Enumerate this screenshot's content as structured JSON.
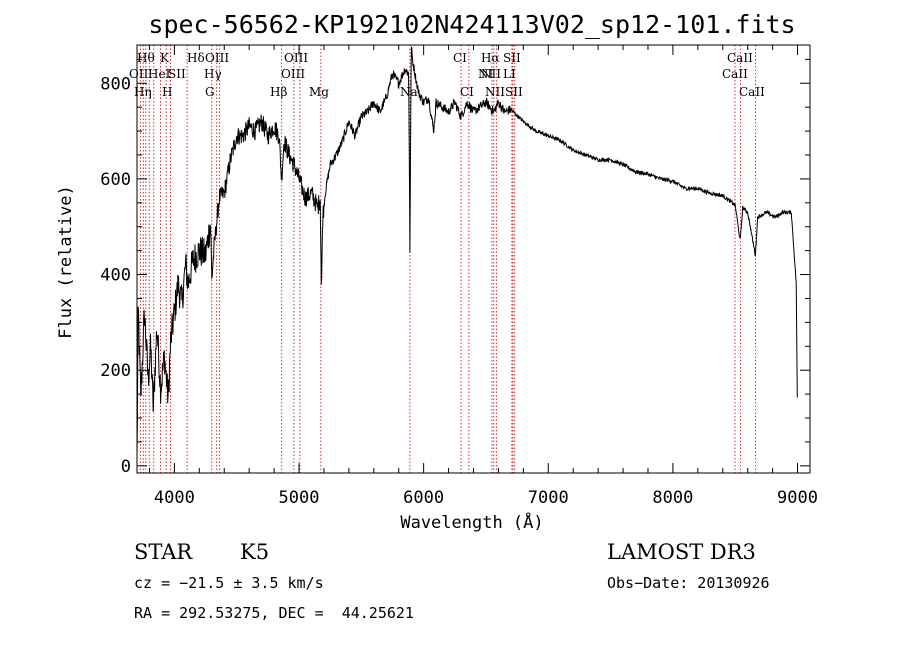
{
  "chart_data": {
    "type": "line",
    "title": "spec-56562-KP192102N424113V02_sp12-101.fits",
    "xlabel": "Wavelength (Å)",
    "ylabel": "Flux (relative)",
    "xlim": [
      3700,
      9100
    ],
    "ylim": [
      -15,
      880
    ],
    "x_ticks": [
      4000,
      5000,
      6000,
      7000,
      8000,
      9000
    ],
    "y_ticks": [
      0,
      200,
      400,
      600,
      800
    ],
    "series": [
      {
        "name": "flux",
        "anchors": [
          [
            3700,
            10
          ],
          [
            3710,
            330
          ],
          [
            3730,
            140
          ],
          [
            3760,
            320
          ],
          [
            3790,
            180
          ],
          [
            3810,
            250
          ],
          [
            3830,
            120
          ],
          [
            3860,
            290
          ],
          [
            3890,
            160
          ],
          [
            3920,
            230
          ],
          [
            3950,
            140
          ],
          [
            3970,
            260
          ],
          [
            4000,
            320
          ],
          [
            4030,
            380
          ],
          [
            4060,
            340
          ],
          [
            4090,
            420
          ],
          [
            4110,
            380
          ],
          [
            4150,
            430
          ],
          [
            4200,
            450
          ],
          [
            4250,
            440
          ],
          [
            4290,
            510
          ],
          [
            4300,
            390
          ],
          [
            4320,
            460
          ],
          [
            4360,
            560
          ],
          [
            4400,
            570
          ],
          [
            4450,
            640
          ],
          [
            4500,
            690
          ],
          [
            4550,
            690
          ],
          [
            4600,
            710
          ],
          [
            4650,
            700
          ],
          [
            4700,
            720
          ],
          [
            4750,
            690
          ],
          [
            4800,
            710
          ],
          [
            4840,
            690
          ],
          [
            4860,
            600
          ],
          [
            4880,
            680
          ],
          [
            4920,
            650
          ],
          [
            4960,
            630
          ],
          [
            5000,
            600
          ],
          [
            5050,
            560
          ],
          [
            5100,
            570
          ],
          [
            5150,
            540
          ],
          [
            5170,
            560
          ],
          [
            5180,
            360
          ],
          [
            5190,
            520
          ],
          [
            5210,
            570
          ],
          [
            5250,
            630
          ],
          [
            5300,
            650
          ],
          [
            5350,
            680
          ],
          [
            5400,
            720
          ],
          [
            5450,
            690
          ],
          [
            5500,
            730
          ],
          [
            5550,
            740
          ],
          [
            5600,
            760
          ],
          [
            5650,
            740
          ],
          [
            5700,
            770
          ],
          [
            5750,
            820
          ],
          [
            5800,
            800
          ],
          [
            5850,
            830
          ],
          [
            5880,
            820
          ],
          [
            5890,
            450
          ],
          [
            5900,
            880
          ],
          [
            5910,
            850
          ],
          [
            5930,
            820
          ],
          [
            5960,
            780
          ],
          [
            6000,
            760
          ],
          [
            6040,
            770
          ],
          [
            6080,
            700
          ],
          [
            6100,
            760
          ],
          [
            6150,
            750
          ],
          [
            6200,
            740
          ],
          [
            6250,
            760
          ],
          [
            6300,
            730
          ],
          [
            6350,
            760
          ],
          [
            6400,
            740
          ],
          [
            6450,
            750
          ],
          [
            6500,
            760
          ],
          [
            6563,
            740
          ],
          [
            6600,
            760
          ],
          [
            6650,
            740
          ],
          [
            6700,
            745
          ],
          [
            6800,
            720
          ],
          [
            6900,
            700
          ],
          [
            7000,
            690
          ],
          [
            7100,
            680
          ],
          [
            7200,
            660
          ],
          [
            7300,
            650
          ],
          [
            7400,
            640
          ],
          [
            7500,
            640
          ],
          [
            7600,
            630
          ],
          [
            7700,
            615
          ],
          [
            7800,
            610
          ],
          [
            7900,
            600
          ],
          [
            8000,
            595
          ],
          [
            8100,
            580
          ],
          [
            8200,
            580
          ],
          [
            8300,
            570
          ],
          [
            8400,
            565
          ],
          [
            8500,
            545
          ],
          [
            8540,
            470
          ],
          [
            8560,
            540
          ],
          [
            8600,
            530
          ],
          [
            8662,
            440
          ],
          [
            8680,
            520
          ],
          [
            8750,
            530
          ],
          [
            8820,
            520
          ],
          [
            8880,
            530
          ],
          [
            8950,
            530
          ],
          [
            8990,
            380
          ],
          [
            9000,
            80
          ]
        ]
      }
    ],
    "line_groups": [
      {
        "row": 0,
        "names": [
          "Hθ",
          "K",
          "Hδ",
          "OIII",
          "OIII",
          "CI",
          "Hα",
          "SII",
          "CaII"
        ]
      },
      {
        "row": 1,
        "names": [
          "OII",
          "HeI",
          "SII",
          "Hγ",
          "OIII",
          "NI",
          "NII",
          "LI",
          "CaII"
        ]
      },
      {
        "row": 2,
        "names": [
          "Hη",
          "H",
          "G",
          "Hβ",
          "Mg",
          "Na",
          "CI",
          "NII",
          "SII",
          "CaII"
        ]
      }
    ],
    "line_wavelengths": [
      3727,
      3750,
      3771,
      3798,
      3835,
      3889,
      3934,
      3969,
      4102,
      4300,
      4340,
      4363,
      4861,
      4959,
      5007,
      5175,
      5890,
      6300,
      6363,
      6548,
      6563,
      6583,
      6708,
      6716,
      6731,
      8498,
      8542,
      8662
    ]
  },
  "info": {
    "object_class": "STAR",
    "subclass": "K5",
    "survey": "LAMOST DR3",
    "redshift": "cz = −21.5 ± 3.5 km/s",
    "obs_date": "Obs−Date: 20130926",
    "coords": "RA = 292.53275, DEC =  44.25621"
  },
  "colors": {
    "axis": "#000000",
    "spectrum": "#000000",
    "line_marker": "#c00000"
  }
}
